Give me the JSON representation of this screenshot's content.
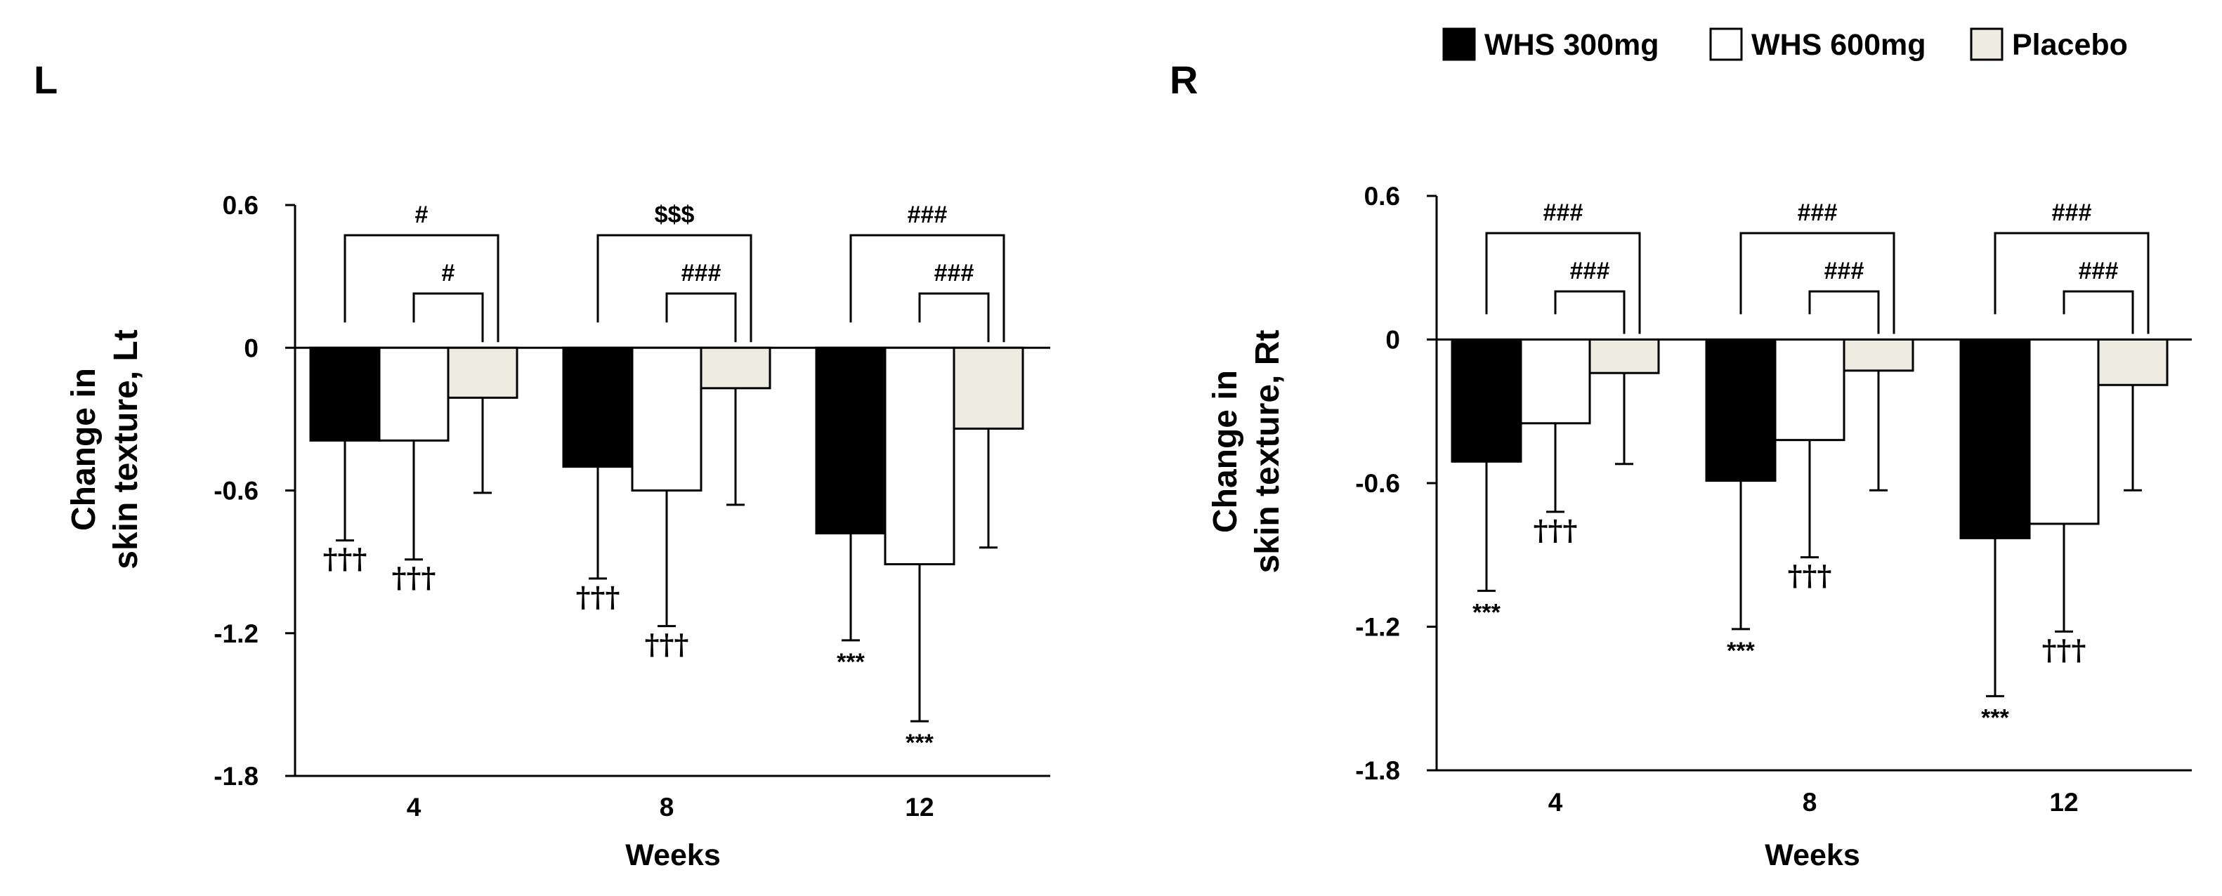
{
  "legend": [
    {
      "label": "WHS 300mg",
      "color": "#000000"
    },
    {
      "label": "WHS 600mg",
      "color": "#ffffff"
    },
    {
      "label": "Placebo",
      "color": "#eeece1"
    }
  ],
  "chart_data": [
    {
      "type": "bar",
      "panel": "L",
      "ylabel_lines": [
        "Change in",
        "skin texture, Lt"
      ],
      "xlabel": "Weeks",
      "categories": [
        "4",
        "8",
        "12"
      ],
      "ylim": [
        -1.8,
        0.6
      ],
      "yticks": [
        "0.6",
        "0",
        "-0.6",
        "-1.2",
        "-1.8"
      ],
      "series": [
        {
          "name": "WHS 300mg",
          "color": "#000000",
          "values": [
            -0.39,
            -0.5,
            -0.78
          ],
          "errors": [
            0.42,
            0.47,
            0.45
          ],
          "labels": [
            "†††",
            "†††",
            "***"
          ]
        },
        {
          "name": "WHS 600mg",
          "color": "#ffffff",
          "values": [
            -0.39,
            -0.6,
            -0.91
          ],
          "errors": [
            0.5,
            0.57,
            0.66
          ],
          "labels": [
            "†††",
            "†††",
            "***"
          ]
        },
        {
          "name": "Placebo",
          "color": "#eeece1",
          "values": [
            -0.21,
            -0.17,
            -0.34
          ],
          "errors": [
            0.4,
            0.49,
            0.5
          ],
          "labels": [
            "",
            "",
            ""
          ]
        }
      ],
      "brackets": [
        {
          "outer": "#",
          "inner": "#"
        },
        {
          "outer": "$$$",
          "inner": "###"
        },
        {
          "outer": "###",
          "inner": "###"
        }
      ]
    },
    {
      "type": "bar",
      "panel": "R",
      "ylabel_lines": [
        "Change in",
        "skin texture, Rt"
      ],
      "xlabel": "Weeks",
      "categories": [
        "4",
        "8",
        "12"
      ],
      "ylim": [
        -1.8,
        0.6
      ],
      "yticks": [
        "0.6",
        "0",
        "-0.6",
        "-1.2",
        "-1.8"
      ],
      "series": [
        {
          "name": "WHS 300mg",
          "color": "#000000",
          "values": [
            -0.51,
            -0.59,
            -0.83
          ],
          "errors": [
            0.54,
            0.62,
            0.66
          ],
          "labels": [
            "***",
            "***",
            "***"
          ]
        },
        {
          "name": "WHS 600mg",
          "color": "#ffffff",
          "values": [
            -0.35,
            -0.42,
            -0.77
          ],
          "errors": [
            0.37,
            0.49,
            0.45
          ],
          "labels": [
            "†††",
            "†††",
            "†††"
          ]
        },
        {
          "name": "Placebo",
          "color": "#eeece1",
          "values": [
            -0.14,
            -0.13,
            -0.19
          ],
          "errors": [
            0.38,
            0.5,
            0.44
          ],
          "labels": [
            "",
            "",
            ""
          ]
        }
      ],
      "brackets": [
        {
          "outer": "###",
          "inner": "###"
        },
        {
          "outer": "###",
          "inner": "###"
        },
        {
          "outer": "###",
          "inner": "###"
        }
      ]
    }
  ]
}
